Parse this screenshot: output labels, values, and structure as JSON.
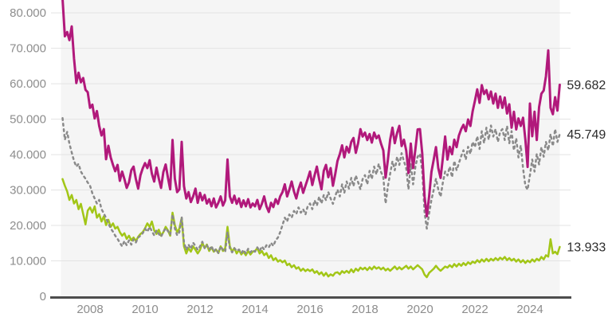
{
  "chart_data": {
    "type": "line",
    "title": "",
    "legend": "none",
    "grid": "horizontal",
    "x_axis": {
      "interval": "monthly",
      "start": "2007-01",
      "end": "2025-02",
      "tick_years": [
        2008,
        2010,
        2012,
        2014,
        2016,
        2018,
        2020,
        2022,
        2024
      ],
      "tick_labels": [
        "2008",
        "2010",
        "2012",
        "2014",
        "2016",
        "2018",
        "2020",
        "2022",
        "2024"
      ]
    },
    "y_axis": {
      "range_thousands": [
        0,
        84
      ],
      "ticks": [
        {
          "value": 0,
          "label": "0"
        },
        {
          "value": 10,
          "label": "10.000"
        },
        {
          "value": 20,
          "label": "20.000"
        },
        {
          "value": 30,
          "label": "30.000"
        },
        {
          "value": 40,
          "label": "40.000"
        },
        {
          "value": 50,
          "label": "50.000"
        },
        {
          "value": 60,
          "label": "60.000"
        },
        {
          "value": 70,
          "label": "70.000"
        },
        {
          "value": 80,
          "label": "80.000"
        }
      ]
    },
    "series": [
      {
        "name": "green",
        "color": "#a2c617",
        "style": "solid",
        "end_label": "13.933",
        "values": [
          33.1,
          31.2,
          29.6,
          27.2,
          28.6,
          26.2,
          27.2,
          24.6,
          26.1,
          23.2,
          20.3,
          24.2,
          25.1,
          23.6,
          25.4,
          22.2,
          23.2,
          21.1,
          22.6,
          20.1,
          21.6,
          19.6,
          20.6,
          19.1,
          19.6,
          18.1,
          17.1,
          17.8,
          16.2,
          17.1,
          15.8,
          16.6,
          15.6,
          16.8,
          17.6,
          18.1,
          19.2,
          20.6,
          19.6,
          21.1,
          18.6,
          17.6,
          18.8,
          17.1,
          18.1,
          19.6,
          18.6,
          17.1,
          23.6,
          20.1,
          18.1,
          19.1,
          22.1,
          14.1,
          12.1,
          13.6,
          12.6,
          14.1,
          13.1,
          12.1,
          13.1,
          15.1,
          13.6,
          14.6,
          12.8,
          13.8,
          12.6,
          13.2,
          12.2,
          14.1,
          12.8,
          13.6,
          19.6,
          14.1,
          12.6,
          13.6,
          12.1,
          13.1,
          11.8,
          12.6,
          11.6,
          12.8,
          11.8,
          12.6,
          12.8,
          13.6,
          12.1,
          12.8,
          11.6,
          12.2,
          10.8,
          11.6,
          10.2,
          10.8,
          9.8,
          10.2,
          9.6,
          10.1,
          8.8,
          9.2,
          8.2,
          8.8,
          7.8,
          8.2,
          7.2,
          7.8,
          7.1,
          7.6,
          7.1,
          7.6,
          6.6,
          7.1,
          6.2,
          6.8,
          5.8,
          6.6,
          5.6,
          6.2,
          5.8,
          6.6,
          6.8,
          6.2,
          7.1,
          6.6,
          7.2,
          6.6,
          7.6,
          6.8,
          7.8,
          7.2,
          8.1,
          7.6,
          8.1,
          7.4,
          8.2,
          7.6,
          8.4,
          7.8,
          8.2,
          7.6,
          8.1,
          7.3,
          7.8,
          7.2,
          7.8,
          8.4,
          7.6,
          8.2,
          7.6,
          8.1,
          8.6,
          7.8,
          8.4,
          7.6,
          8.2,
          8.8,
          8.2,
          7.6,
          6.1,
          5.4,
          6.6,
          7.2,
          7.8,
          8.6,
          7.8,
          7.2,
          7.8,
          8.4,
          8.1,
          8.8,
          8.2,
          9.1,
          8.4,
          9.2,
          8.6,
          9.4,
          8.8,
          9.6,
          9.1,
          9.8,
          9.4,
          10.2,
          9.6,
          10.4,
          9.8,
          10.6,
          9.9,
          10.6,
          10.1,
          10.8,
          10.2,
          10.9,
          10.4,
          11.1,
          10.2,
          10.8,
          10.1,
          10.6,
          9.8,
          10.4,
          9.6,
          10.2,
          9.4,
          10.1,
          9.6,
          10.4,
          9.8,
          10.6,
          10.1,
          11.1,
          10.4,
          11.6,
          11.2,
          16.1,
          12.1,
          12.6,
          11.9,
          13.933
        ]
      },
      {
        "name": "gray-dotted",
        "color": "#8a8a8a",
        "style": "dashed",
        "end_label": "45.749",
        "values": [
          50.3,
          44.2,
          46.4,
          43.1,
          40.6,
          38.2,
          36.6,
          37.4,
          35.2,
          34.1,
          33.2,
          32.1,
          31.2,
          29.1,
          27.6,
          26.2,
          27.2,
          24.6,
          23.4,
          22.1,
          20.6,
          19.2,
          18.2,
          17.1,
          16.2,
          15.1,
          14.1,
          15.6,
          14.4,
          15.8,
          14.6,
          16.1,
          15.2,
          16.6,
          17.1,
          17.8,
          19.1,
          18.2,
          19.6,
          18.4,
          17.2,
          18.6,
          17.6,
          16.8,
          18.2,
          19.2,
          18.4,
          17.4,
          23.1,
          19.2,
          17.2,
          18.1,
          22.4,
          15.2,
          13.1,
          14.6,
          13.4,
          15.1,
          14.2,
          13.1,
          14.1,
          15.4,
          13.6,
          14.4,
          13.1,
          14.2,
          12.6,
          13.4,
          12.2,
          14.1,
          13.1,
          12.6,
          18.1,
          13.6,
          12.4,
          13.6,
          12.8,
          13.2,
          12.2,
          13.1,
          12.1,
          13.4,
          12.4,
          13.1,
          12.6,
          13.8,
          12.8,
          14.1,
          13.2,
          14.4,
          13.8,
          15.1,
          14.2,
          15.8,
          16.6,
          18.1,
          20.1,
          22.2,
          21.1,
          23.1,
          22.2,
          24.1,
          23.2,
          25.1,
          23.6,
          24.6,
          23.1,
          25.4,
          26.2,
          24.6,
          27.1,
          25.6,
          28.1,
          26.2,
          28.6,
          27.1,
          29.4,
          27.6,
          26.1,
          28.2,
          30.1,
          28.2,
          31.6,
          29.2,
          32.4,
          30.4,
          33.4,
          31.1,
          34.1,
          32.2,
          30.2,
          33.1,
          34.2,
          31.6,
          35.4,
          33.1,
          36.6,
          34.4,
          37.4,
          35.1,
          33.6,
          26.2,
          31.1,
          34.6,
          38.1,
          35.6,
          39.4,
          37.1,
          40.4,
          38.1,
          36.1,
          30.2,
          37.4,
          31.6,
          36.6,
          39.4,
          40.2,
          35.2,
          23.6,
          19.1,
          23.4,
          27.2,
          30.1,
          33.2,
          30.2,
          28.1,
          32.2,
          35.2,
          34.1,
          36.6,
          33.6,
          38.2,
          35.6,
          37.6,
          39.6,
          41.2,
          38.6,
          42.2,
          40.2,
          43.6,
          42.1,
          45.2,
          41.6,
          46.6,
          43.2,
          47.6,
          44.2,
          48.2,
          45.1,
          47.2,
          43.6,
          46.4,
          47.2,
          44.1,
          48.1,
          43.2,
          46.6,
          41.2,
          44.6,
          39.2,
          42.6,
          36.1,
          31.2,
          30.1,
          34.2,
          38.6,
          35.2,
          40.2,
          37.2,
          42.1,
          39.4,
          43.6,
          41.2,
          45.8,
          42.4,
          47.2,
          43.6,
          45.749
        ]
      },
      {
        "name": "magenta",
        "color": "#b1197b",
        "style": "solid",
        "end_label": "59.682",
        "values": [
          84,
          73.4,
          74.6,
          72.3,
          76.2,
          67.1,
          60.2,
          63.1,
          60.4,
          61.6,
          58.3,
          57.6,
          53.2,
          54.1,
          50.2,
          52.3,
          48.1,
          45.4,
          47.2,
          38.7,
          42.5,
          39.2,
          37.1,
          35.3,
          37.1,
          32.6,
          35.2,
          33.1,
          30.6,
          32.2,
          35.6,
          36.6,
          33.1,
          30.4,
          34.2,
          36.1,
          37.6,
          36.2,
          38.4,
          34.6,
          32.4,
          36.3,
          33.2,
          30.6,
          35.1,
          37.2,
          33.4,
          30.2,
          44.1,
          33.2,
          29.4,
          30.2,
          43.6,
          31.1,
          27.6,
          29.4,
          26.6,
          28.2,
          30.4,
          26.4,
          29.2,
          27.1,
          28.6,
          26.2,
          27.4,
          25.4,
          27.6,
          25.1,
          26.4,
          28.2,
          25.6,
          27.1,
          38.6,
          28.2,
          26.4,
          28.4,
          26.1,
          27.6,
          25.2,
          27.1,
          25.4,
          27.4,
          25.1,
          26.2,
          25.4,
          27.2,
          24.6,
          26.1,
          28.2,
          25.4,
          23.8,
          26.4,
          25.2,
          27.4,
          26.1,
          28.2,
          29.4,
          31.6,
          28.2,
          30.1,
          32.4,
          29.6,
          27.6,
          30.2,
          32.1,
          29.2,
          31.2,
          33.1,
          35.2,
          31.4,
          34.2,
          36.6,
          33.1,
          30.2,
          35.4,
          37.1,
          33.6,
          36.2,
          31.2,
          34.4,
          38.2,
          40.1,
          42.6,
          39.2,
          42.2,
          40.6,
          43.6,
          44.7,
          40.5,
          43.2,
          47.2,
          45.1,
          46.2,
          44.1,
          45.8,
          43.4,
          46.2,
          44.6,
          45.4,
          43.1,
          41.2,
          33.5,
          38.6,
          44.2,
          47.6,
          43.2,
          46.1,
          48.1,
          42.4,
          44.2,
          41.1,
          34.8,
          43.1,
          36.2,
          41.6,
          47.1,
          47.2,
          40.2,
          28.1,
          22.6,
          28.2,
          35.1,
          38.6,
          42.1,
          36.2,
          33.4,
          39.2,
          45.1,
          38.6,
          42.2,
          40.1,
          44.2,
          42.1,
          45.4,
          47.2,
          48.4,
          46.6,
          49.9,
          48.1,
          52.2,
          55.2,
          58.4,
          54.6,
          59.6,
          57.1,
          58.2,
          55.6,
          57.8,
          54.4,
          57.2,
          53.2,
          56.4,
          53.2,
          56.1,
          51.6,
          54.2,
          47.6,
          52.1,
          47.1,
          50.2,
          48.1,
          50.4,
          44.2,
          36.5,
          54.4,
          45.2,
          52.1,
          44.1,
          53.4,
          57.2,
          58.1,
          62.1,
          69.4,
          53.2,
          51.4,
          56.2,
          52.4,
          59.682
        ]
      }
    ]
  },
  "colors": {
    "plot_background": "#f5f5f5",
    "gridline": "#e3e3e3",
    "axis_line": "#4d4d4d",
    "axis_text": "#8d8d8d",
    "end_label_text": "#2b2b2b",
    "page_background": "#ffffff"
  }
}
